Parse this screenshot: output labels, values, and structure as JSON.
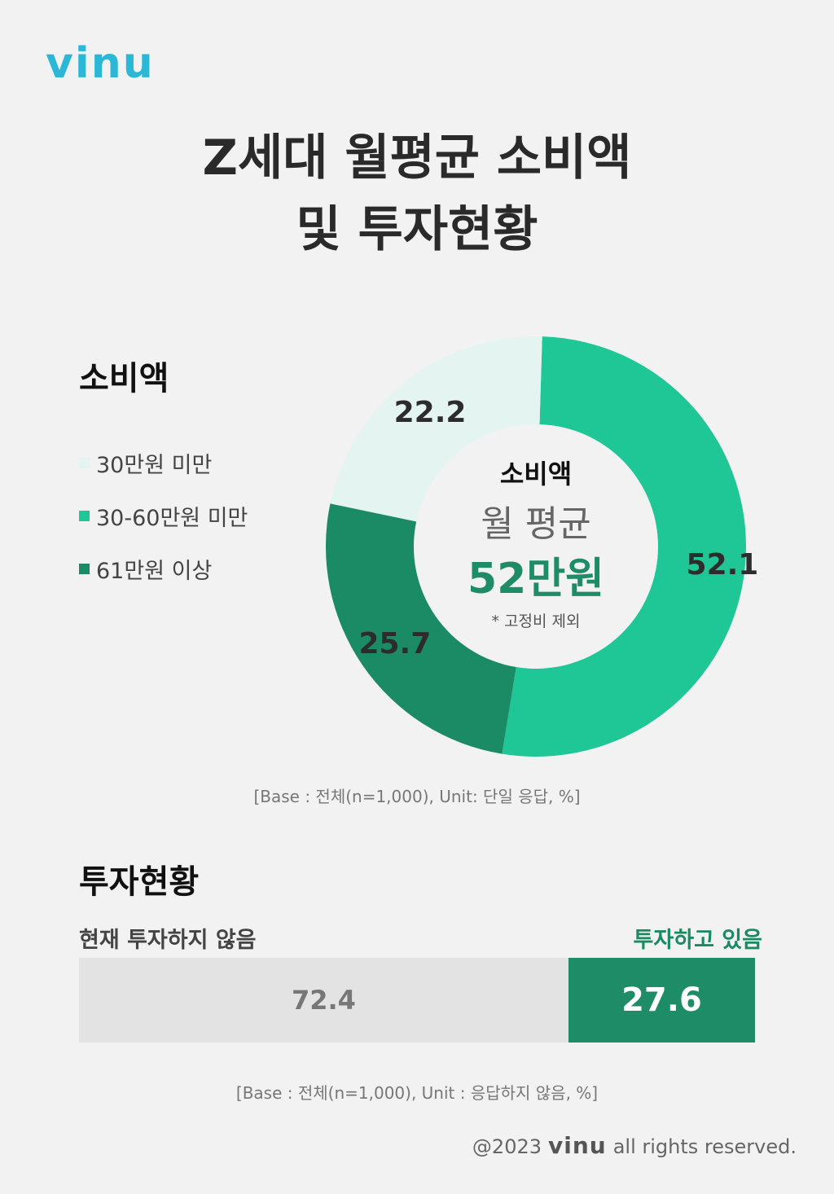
{
  "brand": {
    "logo_text": "vinu",
    "logo_color": "#2ab8d6"
  },
  "title": {
    "line1": "Z세대 월평균 소비액",
    "line2": "및 투자현황"
  },
  "spending": {
    "heading": "소비액",
    "legend": [
      {
        "label": "30만원 미만",
        "color": "#e4f4f0"
      },
      {
        "label": "30-60만원 미만",
        "color": "#1ec795"
      },
      {
        "label": "61만원 이상",
        "color": "#1b8b66"
      }
    ],
    "center": {
      "title": "소비액",
      "subtitle": "월 평균",
      "value": "52만원",
      "note": "* 고정비 제외"
    },
    "base_note": "[Base : 전체(n=1,000), Unit: 단일 응답, %]"
  },
  "investment": {
    "heading": "투자현황",
    "label_no": "현재 투자하지 않음",
    "label_yes": "투자하고 있음",
    "base_note": "[Base : 전체(n=1,000), Unit : 응답하지 않음, %]"
  },
  "footer": {
    "prefix": "@2023",
    "logo_text": "vinu",
    "suffix": "all rights reserved."
  },
  "chart_data": [
    {
      "type": "pie",
      "categories": [
        "30만원 미만",
        "30-60만원 미만",
        "61만원 이상"
      ],
      "values": [
        22.2,
        52.1,
        25.7
      ],
      "labels": [
        "22.2",
        "52.1",
        "25.7"
      ],
      "colors": [
        "#e4f4f0",
        "#1ec795",
        "#1b8b66"
      ],
      "donut": true
    },
    {
      "type": "bar",
      "orientation": "horizontal-stacked",
      "categories": [
        "현재 투자하지 않음",
        "투자하고 있음"
      ],
      "values": [
        72.4,
        27.6
      ],
      "labels": [
        "72.4",
        "27.6"
      ],
      "colors": [
        "#e3e3e3",
        "#1f8c68"
      ]
    }
  ]
}
